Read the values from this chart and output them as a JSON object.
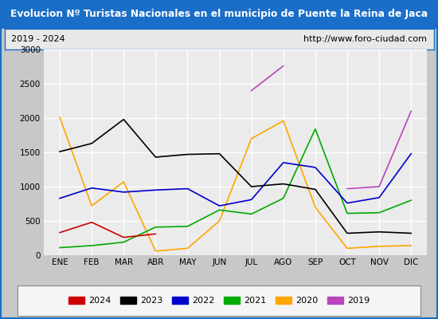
{
  "title": "Evolucion Nº Turistas Nacionales en el municipio de Puente la Reina de Jaca",
  "subtitle_left": "2019 - 2024",
  "subtitle_right": "http://www.foro-ciudad.com",
  "title_bg_color": "#1a6ec7",
  "title_text_color": "#ffffff",
  "subtitle_bg_color": "#e8e8e8",
  "subtitle_border_color": "#1a6ec7",
  "plot_bg_color": "#ebebeb",
  "outer_bg_color": "#c8c8c8",
  "months": [
    "ENE",
    "FEB",
    "MAR",
    "ABR",
    "MAY",
    "JUN",
    "JUL",
    "AGO",
    "SEP",
    "OCT",
    "NOV",
    "DIC"
  ],
  "series": {
    "2024": {
      "color": "#cc0000",
      "data": [
        330,
        480,
        260,
        310,
        null,
        null,
        null,
        null,
        null,
        null,
        null,
        null
      ]
    },
    "2023": {
      "color": "#000000",
      "data": [
        1510,
        1630,
        1980,
        1430,
        1470,
        1480,
        1000,
        1040,
        960,
        320,
        340,
        320
      ]
    },
    "2022": {
      "color": "#0000cc",
      "data": [
        830,
        980,
        920,
        950,
        970,
        720,
        810,
        1350,
        1280,
        760,
        840,
        1480
      ]
    },
    "2021": {
      "color": "#00aa00",
      "data": [
        110,
        140,
        190,
        410,
        420,
        660,
        600,
        830,
        1840,
        610,
        620,
        800
      ]
    },
    "2020": {
      "color": "#ffa500",
      "data": [
        2010,
        720,
        1070,
        60,
        100,
        500,
        1700,
        1960,
        700,
        100,
        130,
        140
      ]
    },
    "2019": {
      "color": "#bb44bb",
      "data": [
        null,
        null,
        null,
        null,
        null,
        null,
        2400,
        2760,
        null,
        970,
        1000,
        2100
      ]
    }
  },
  "ylim": [
    0,
    3000
  ],
  "yticks": [
    0,
    500,
    1000,
    1500,
    2000,
    2500,
    3000
  ],
  "legend_order": [
    "2024",
    "2023",
    "2022",
    "2021",
    "2020",
    "2019"
  ],
  "outer_border_color": "#1a6ec7"
}
